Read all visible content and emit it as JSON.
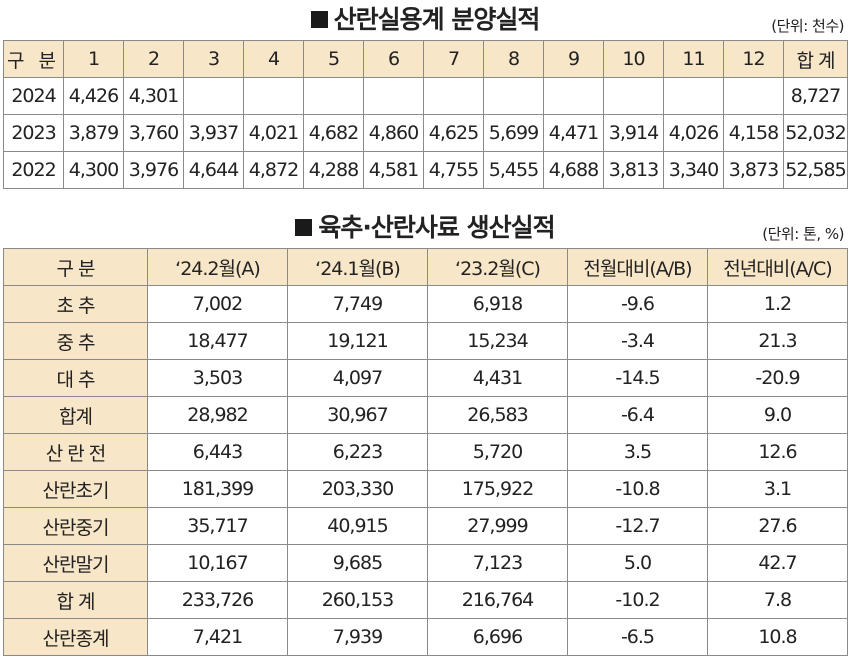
{
  "top": {
    "title": "산란실용계 분양실적",
    "unit": "(단위: 천수)",
    "header": [
      "구 분",
      "1",
      "2",
      "3",
      "4",
      "5",
      "6",
      "7",
      "8",
      "9",
      "10",
      "11",
      "12",
      "합 계"
    ],
    "rows": [
      [
        "2024",
        "4,426",
        "4,301",
        "",
        "",
        "",
        "",
        "",
        "",
        "",
        "",
        "",
        "",
        "8,727"
      ],
      [
        "2023",
        "3,879",
        "3,760",
        "3,937",
        "4,021",
        "4,682",
        "4,860",
        "4,625",
        "5,699",
        "4,471",
        "3,914",
        "4,026",
        "4,158",
        "52,032"
      ],
      [
        "2022",
        "4,300",
        "3,976",
        "4,644",
        "4,872",
        "4,288",
        "4,581",
        "4,755",
        "5,455",
        "4,688",
        "3,813",
        "3,340",
        "3,873",
        "52,585"
      ]
    ]
  },
  "bottom": {
    "title": "육추·산란사료 생산실적",
    "unit": "(단위: 톤, %)",
    "header": [
      "구 분",
      "‘24.2월(A)",
      "‘24.1월(B)",
      "‘23.2월(C)",
      "전월대비(A/B)",
      "전년대비(A/C)"
    ],
    "rows": [
      [
        "초 추",
        "7,002",
        "7,749",
        "6,918",
        "-9.6",
        "1.2"
      ],
      [
        "중 추",
        "18,477",
        "19,121",
        "15,234",
        "-3.4",
        "21.3"
      ],
      [
        "대 추",
        "3,503",
        "4,097",
        "4,431",
        "-14.5",
        "-20.9"
      ],
      [
        "합계",
        "28,982",
        "30,967",
        "26,583",
        "-6.4",
        "9.0"
      ],
      [
        "산 란 전",
        "6,443",
        "6,223",
        "5,720",
        "3.5",
        "12.6"
      ],
      [
        "산란초기",
        "181,399",
        "203,330",
        "175,922",
        "-10.8",
        "3.1"
      ],
      [
        "산란중기",
        "35,717",
        "40,915",
        "27,999",
        "-12.7",
        "27.6"
      ],
      [
        "산란말기",
        "10,167",
        "9,685",
        "7,123",
        "5.0",
        "42.7"
      ],
      [
        "합 계",
        "233,726",
        "260,153",
        "216,764",
        "-10.2",
        "7.8"
      ],
      [
        "산란종계",
        "7,421",
        "7,939",
        "6,696",
        "-6.5",
        "10.8"
      ]
    ]
  }
}
